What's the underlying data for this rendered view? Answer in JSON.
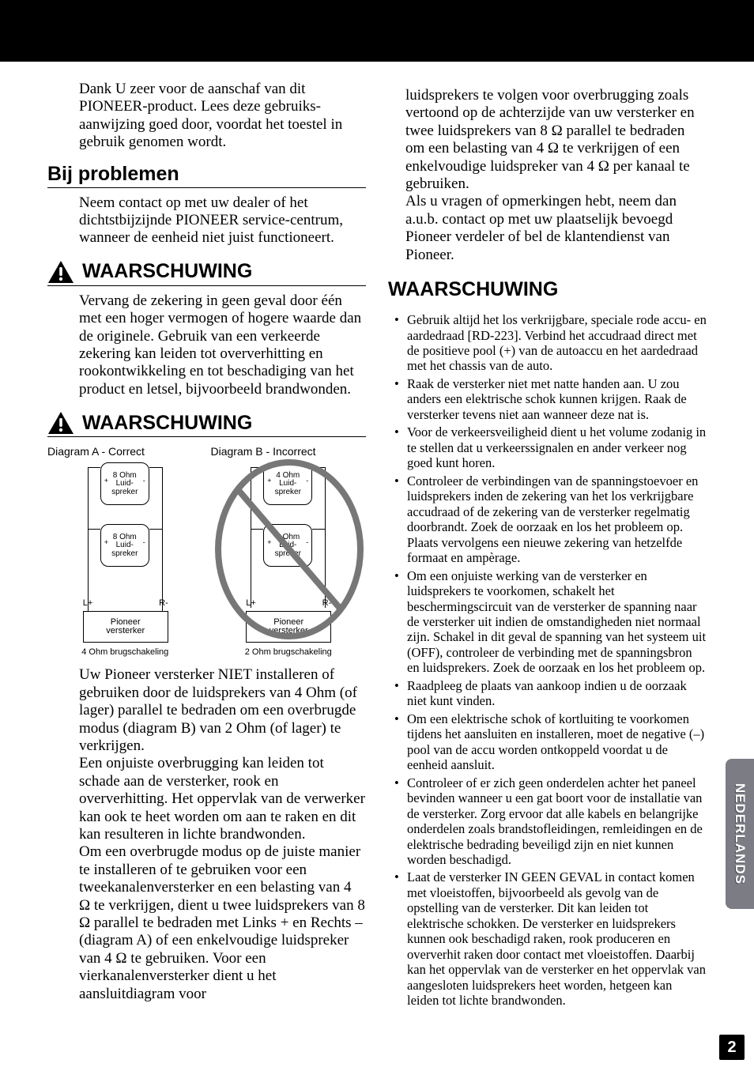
{
  "intro": "Dank U zeer voor de aanschaf van dit PIONEER-product. Lees deze gebruiks-aanwijzing goed door, voordat het toestel in gebruik genomen wordt.",
  "sec1_title": "Bij problemen",
  "sec1_body": "Neem contact op met uw dealer of het dichtstbijzijnde PIONEER service-centrum, wanneer de eenheid niet juist functioneert.",
  "warn1_title": "WAARSCHUWING",
  "warn1_body": "Vervang de zekering in geen geval door één met een hoger vermogen of hogere waarde dan de originele. Gebruik van een verkeerde zekering kan leiden tot oververhitting en rookontwikkeling en tot beschadiging van het product en letsel, bijvoorbeeld brandwonden.",
  "warn2_title": "WAARSCHUWING",
  "diagA_title": "Diagram A - Correct",
  "diagB_title": "Diagram B - Incorrect",
  "spk_label1": "Luid-",
  "spk_label2": "spreker",
  "amp_label1": "Pioneer",
  "amp_label2": "versterker",
  "ohm8": "8 Ohm",
  "ohm4": "4 Ohm",
  "lplus": "L+",
  "rminus": "R-",
  "capA": "4 Ohm brugschakeling",
  "capB": "2 Ohm brugschakeling",
  "warn2_body": "Uw Pioneer versterker NIET installeren of gebruiken door de luidsprekers van 4 Ohm (of lager) parallel te bedraden om een overbrugde modus (diagram B) van 2 Ohm (of lager) te verkrijgen.\nEen onjuiste overbrugging kan leiden tot schade aan de versterker, rook en oververhitting. Het oppervlak van de verwerker kan ook te heet worden om aan te raken en dit kan resulteren in lichte brandwonden.\nOm een overbrugde modus op de juiste manier te installeren of te gebruiken voor een tweekanalenversterker en een belasting van 4 Ω te verkrijgen, dient u twee luidsprekers van 8 Ω parallel te bedraden met Links + en Rechts – (diagram A) of een enkelvoudige luidspreker van 4 Ω te gebruiken. Voor een vierkanalenversterker dient u het aansluitdiagram voor",
  "col2_top": "luidsprekers te volgen voor overbrugging zoals vertoond op de achterzijde van uw versterker en twee luidsprekers van 8 Ω parallel te bedraden om een belasting van 4 Ω te verkrijgen of een enkelvoudige luidspreker van 4 Ω per kanaal te gebruiken.\nAls u vragen of opmerkingen hebt, neem dan a.u.b. contact op met uw plaatselijk bevoegd Pioneer verdeler of bel de klantendienst van Pioneer.",
  "sec3_title": "WAARSCHUWING",
  "bullets": [
    "Gebruik altijd het los verkrijgbare, speciale rode accu- en aardedraad [RD-223]. Verbind het accudraad direct met de positieve pool (+) van de autoaccu en het aardedraad met het chassis van de auto.",
    "Raak de versterker niet met natte handen aan. U zou anders een elektrische schok kunnen krijgen. Raak de versterker tevens niet aan wanneer deze nat is.",
    "Voor de verkeersveiligheid dient u het volume zodanig in te stellen dat u verkeerssignalen en ander verkeer nog goed kunt horen.",
    "Controleer de verbindingen van de spanningstoevoer en luidsprekers inden de zekering van het los verkrijgbare accudraad of de zekering van de versterker regelmatig doorbrandt. Zoek de oorzaak en los het probleem op. Plaats vervolgens een nieuwe zekering van hetzelfde formaat en ampèrage.",
    "Om een onjuiste werking van de versterker en luidsprekers te voorkomen, schakelt het beschermingscircuit van de versterker de spanning naar de versterker uit indien de omstandigheden niet normaal zijn. Schakel in dit geval de spanning van het systeem uit (OFF), controleer de verbinding met de spanningsbron en luidsprekers. Zoek de oorzaak en los het probleem op.",
    "Raadpleeg de plaats van aankoop indien u de oorzaak niet kunt vinden.",
    "Om een elektrische schok of kortluiting te voorkomen tijdens het aansluiten en installeren, moet de negative (–) pool van de accu worden ontkoppeld voordat u de eenheid aansluit.",
    "Controleer of er zich geen onderdelen achter het paneel bevinden wanneer u een gat boort voor de installatie van de versterker. Zorg ervoor dat alle kabels en belangrijke onderdelen zoals brandstofleidingen, remleidingen en de elektrische bedrading beveiligd zijn en niet kunnen worden beschadigd.",
    "Laat de versterker IN GEEN GEVAL in contact komen met vloeistoffen, bijvoorbeeld als gevolg van de opstelling van de versterker. Dit kan leiden tot elektrische schokken. De versterker en luidsprekers kunnen ook beschadigd raken, rook produceren en oververhit raken door contact met vloeistoffen. Daarbij kan het oppervlak van de versterker en het oppervlak van aangesloten luidsprekers heet worden, hetgeen kan leiden tot lichte brandwonden."
  ],
  "side_tab": "NEDERLANDS",
  "page_number": "2",
  "colors": {
    "tab_bg": "#7c7c85",
    "tab_text": "#ffffff"
  }
}
